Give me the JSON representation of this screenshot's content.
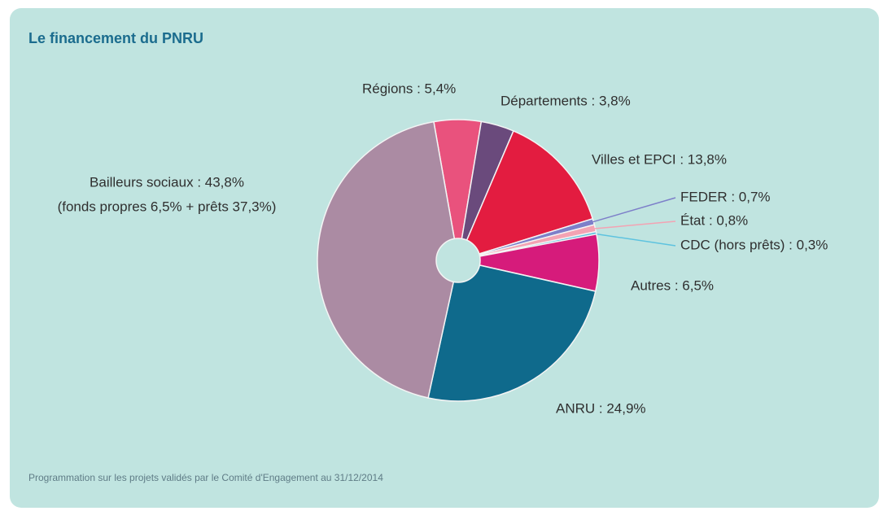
{
  "chart_data": {
    "type": "pie",
    "title": "Le financement du PNRU",
    "values": [
      5.4,
      3.8,
      13.8,
      0.7,
      0.8,
      0.3,
      6.5,
      24.9,
      43.8
    ],
    "value_labels": [
      "Régions : 5,4%",
      "Départements : 3,8%",
      "Villes et EPCI : 13,8%",
      "FEDER : 0,7%",
      "État : 0,8%",
      "CDC (hors prêts) : 0,3%",
      "Autres : 6,5%",
      "ANRU : 24,9%",
      "Bailleurs sociaux : 43,8%"
    ],
    "colors": [
      "#e9527d",
      "#6a4a7c",
      "#e31c40",
      "#7d7fc9",
      "#f3a3b3",
      "#5ec3df",
      "#d61b7b",
      "#0f6a8c",
      "#ab8ba3"
    ],
    "annotations": [
      "(fonds propres 6,5% + prêts 37,3%)"
    ],
    "footnote": "Programmation sur les projets validés par le Comité d'Engagement au 31/12/2014"
  }
}
